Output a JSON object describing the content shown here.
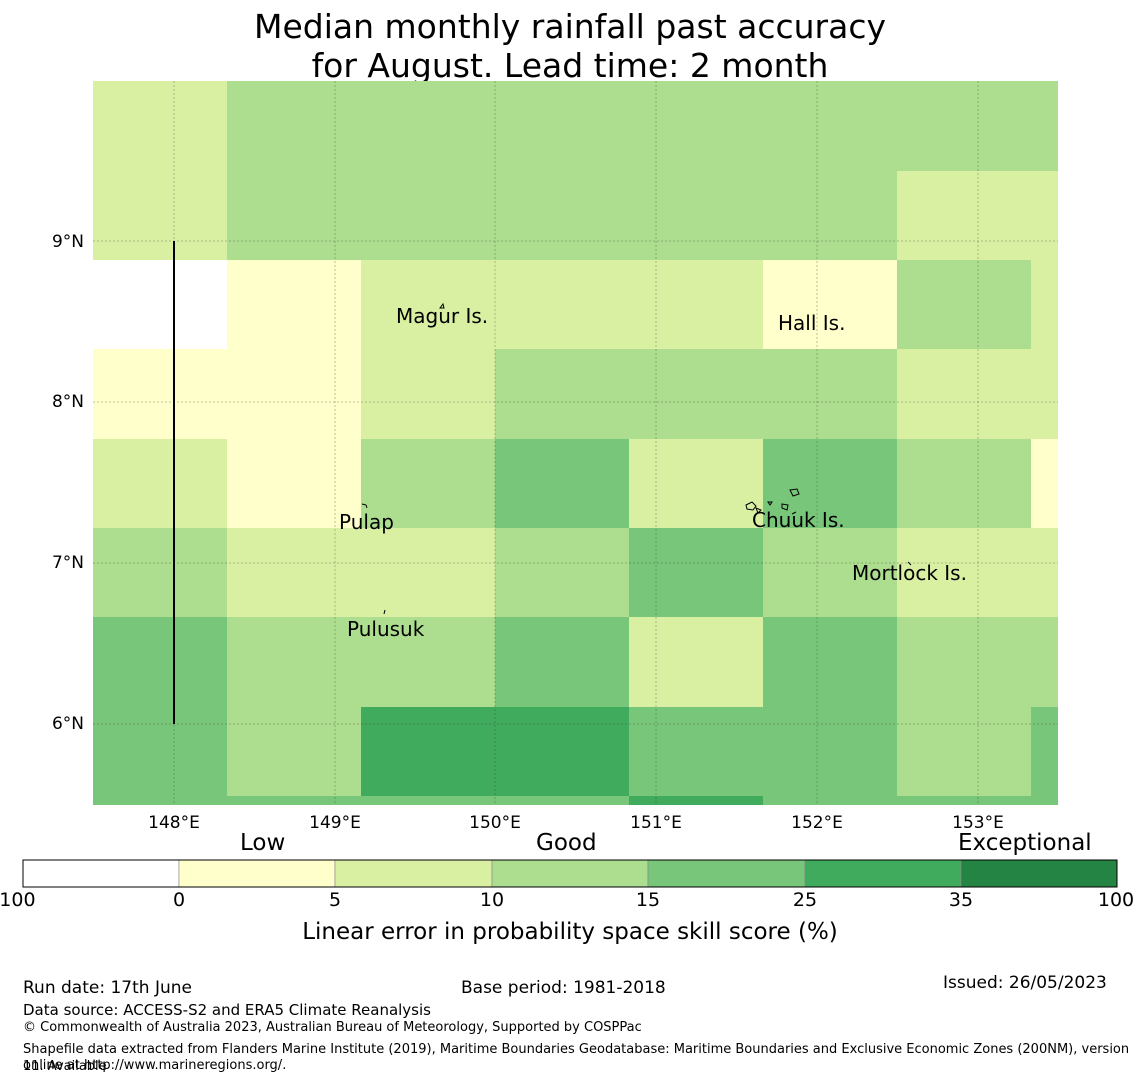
{
  "title": {
    "line1": "Median monthly rainfall past accuracy",
    "line2": "for August. Lead time: 2 month"
  },
  "map": {
    "x_axis_labels": [
      "148°E",
      "149°E",
      "150°E",
      "151°E",
      "152°E",
      "153°E"
    ],
    "y_axis_labels": [
      "9°N",
      "8°N",
      "7°N",
      "6°N"
    ],
    "places": [
      {
        "name": "Magur Is."
      },
      {
        "name": "Hall Is."
      },
      {
        "name": "Pulap"
      },
      {
        "name": "Chuuk Is."
      },
      {
        "name": "Mortlock Is."
      },
      {
        "name": "Pulusuk"
      }
    ],
    "grid_categories": [
      [
        2,
        3,
        3,
        3,
        3,
        3,
        3,
        3
      ],
      [
        2,
        3,
        3,
        3,
        3,
        3,
        2,
        2
      ],
      [
        0,
        1,
        2,
        2,
        2,
        1,
        3,
        2
      ],
      [
        1,
        1,
        2,
        3,
        3,
        3,
        2,
        2
      ],
      [
        2,
        1,
        3,
        4,
        2,
        4,
        3,
        1
      ],
      [
        3,
        2,
        2,
        3,
        4,
        3,
        2,
        2
      ],
      [
        4,
        3,
        3,
        4,
        2,
        4,
        3,
        3
      ],
      [
        4,
        3,
        5,
        5,
        4,
        4,
        3,
        4
      ]
    ],
    "extra_bottom_strip": [
      4,
      4,
      4,
      4,
      5,
      4,
      4,
      4
    ]
  },
  "colorbar": {
    "category_labels": [
      "Low",
      "Good",
      "Exceptional"
    ],
    "tick_labels": [
      "-100",
      "0",
      "5",
      "10",
      "15",
      "25",
      "35",
      "100"
    ],
    "colors": [
      "#ffffff",
      "#ffffcc",
      "#d9f0a3",
      "#addd8e",
      "#78c679",
      "#41ab5d",
      "#238443"
    ],
    "axis_label": "Linear error in probability space skill score (%)"
  },
  "footer": {
    "run_date": "Run date: 17th June",
    "base_period": "Base period: 1981-2018",
    "issued": "Issued: 26/05/2023",
    "data_source": "Data source: ACCESS-S2 and ERA5 Climate Reanalysis",
    "copyright": "© Commonwealth of Australia 2023, Australian Bureau of Meteorology, Supported by COSPPac",
    "shapefile_line1": "Shapefile data extracted from Flanders Marine Institute (2019), Maritime Boundaries Geodatabase: Maritime Boundaries and Exclusive Economic Zones (200NM), version 11. Available",
    "shapefile_line2": "online at http://www.marineregions.org/."
  }
}
